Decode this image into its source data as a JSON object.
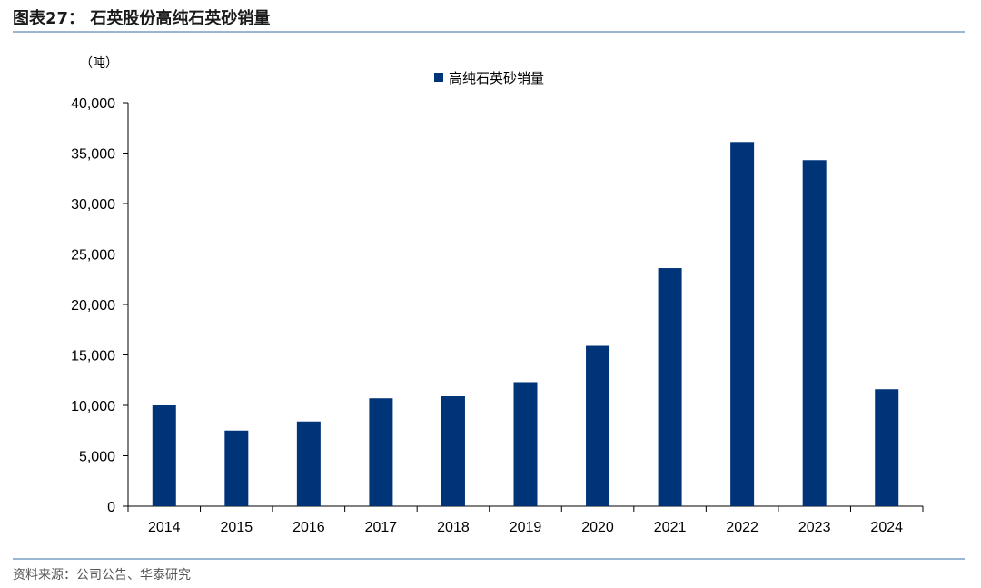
{
  "figure": {
    "header": "图表27： 石英股份高纯石英砂销量",
    "source": "资料来源：公司公告、华泰研究"
  },
  "colors": {
    "bar": "#003479",
    "rule": "#9bb6d3"
  },
  "chart_data": {
    "type": "bar",
    "title": "",
    "unit": "（吨）",
    "categories": [
      "2014",
      "2015",
      "2016",
      "2017",
      "2018",
      "2019",
      "2020",
      "2021",
      "2022",
      "2023",
      "2024"
    ],
    "series": [
      {
        "name": "高纯石英砂销量",
        "values": [
          10000,
          7500,
          8400,
          10700,
          10900,
          12300,
          15900,
          23600,
          36100,
          34300,
          11600
        ]
      }
    ],
    "ylim": [
      0,
      40000
    ],
    "yticks": [
      0,
      5000,
      10000,
      15000,
      20000,
      25000,
      30000,
      35000,
      40000
    ],
    "ytick_labels": [
      "0",
      "5,000",
      "10,000",
      "15,000",
      "20,000",
      "25,000",
      "30,000",
      "35,000",
      "40,000"
    ],
    "grid": false,
    "legend": "top-center"
  }
}
